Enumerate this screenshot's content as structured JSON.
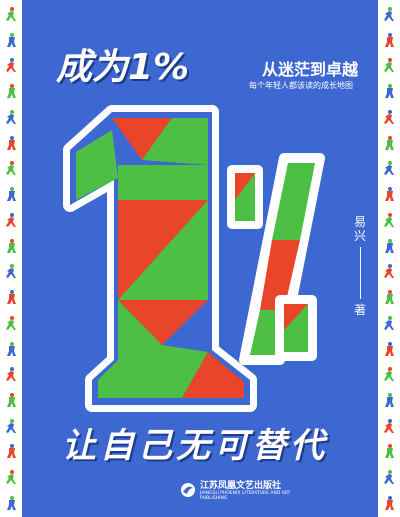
{
  "cover": {
    "title_main": "成为1%",
    "title_sub": "从迷茫到卓越",
    "tagline": "每个年轻人都该读的成长地图",
    "author": "易兴",
    "author_suffix": "著",
    "slogan": "让自己无可替代",
    "publisher_cn": "江苏凤凰文艺出版社",
    "publisher_en": "JIANGSU PHOENIX LITERATURE AND ART PUBLISHING"
  },
  "colors": {
    "background": "#3d67d1",
    "red": "#e8452b",
    "green": "#4dbf45",
    "white": "#ffffff",
    "blue_tile": "#3d67d1"
  },
  "border_icons": [
    "runner-icon",
    "figure-icon",
    "runner-icon",
    "figure-icon",
    "runner-icon",
    "figure-icon",
    "runner-icon",
    "figure-icon",
    "runner-icon",
    "figure-icon",
    "runner-icon",
    "figure-icon",
    "runner-icon",
    "figure-icon",
    "runner-icon",
    "figure-icon",
    "runner-icon",
    "figure-icon",
    "runner-icon",
    "figure-icon"
  ]
}
